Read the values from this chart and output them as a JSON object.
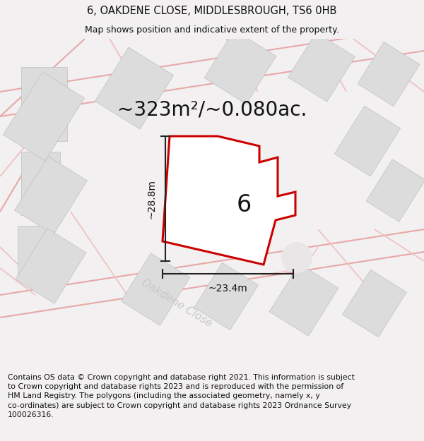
{
  "title": "6, OAKDENE CLOSE, MIDDLESBROUGH, TS6 0HB",
  "subtitle": "Map shows position and indicative extent of the property.",
  "footer": "Contains OS data © Crown copyright and database right 2021. This information is subject\nto Crown copyright and database rights 2023 and is reproduced with the permission of\nHM Land Registry. The polygons (including the associated geometry, namely x, y\nco-ordinates) are subject to Crown copyright and database rights 2023 Ordnance Survey\n100026316.",
  "area_label": "~323m²/~0.080ac.",
  "property_number": "6",
  "dim_height": "~28.8m",
  "dim_width": "~23.4m",
  "street_label": "Oakdene Close",
  "bg_color": "#f2f0f0",
  "map_bg": "#f7f5f5",
  "building_fill": "#dcdcdc",
  "building_edge": "#c0c0c0",
  "road_line_color": "#f0c0c0",
  "road_line_color2": "#e8a8a8",
  "property_fill": "#ffffff",
  "property_edge": "#cc0000",
  "dim_line_color": "#222222",
  "street_label_color": "#c8c8c8",
  "title_fontsize": 10.5,
  "subtitle_fontsize": 9,
  "footer_fontsize": 7.8,
  "area_fontsize": 20,
  "number_fontsize": 24,
  "street_fontsize": 11,
  "dim_fontsize": 10
}
